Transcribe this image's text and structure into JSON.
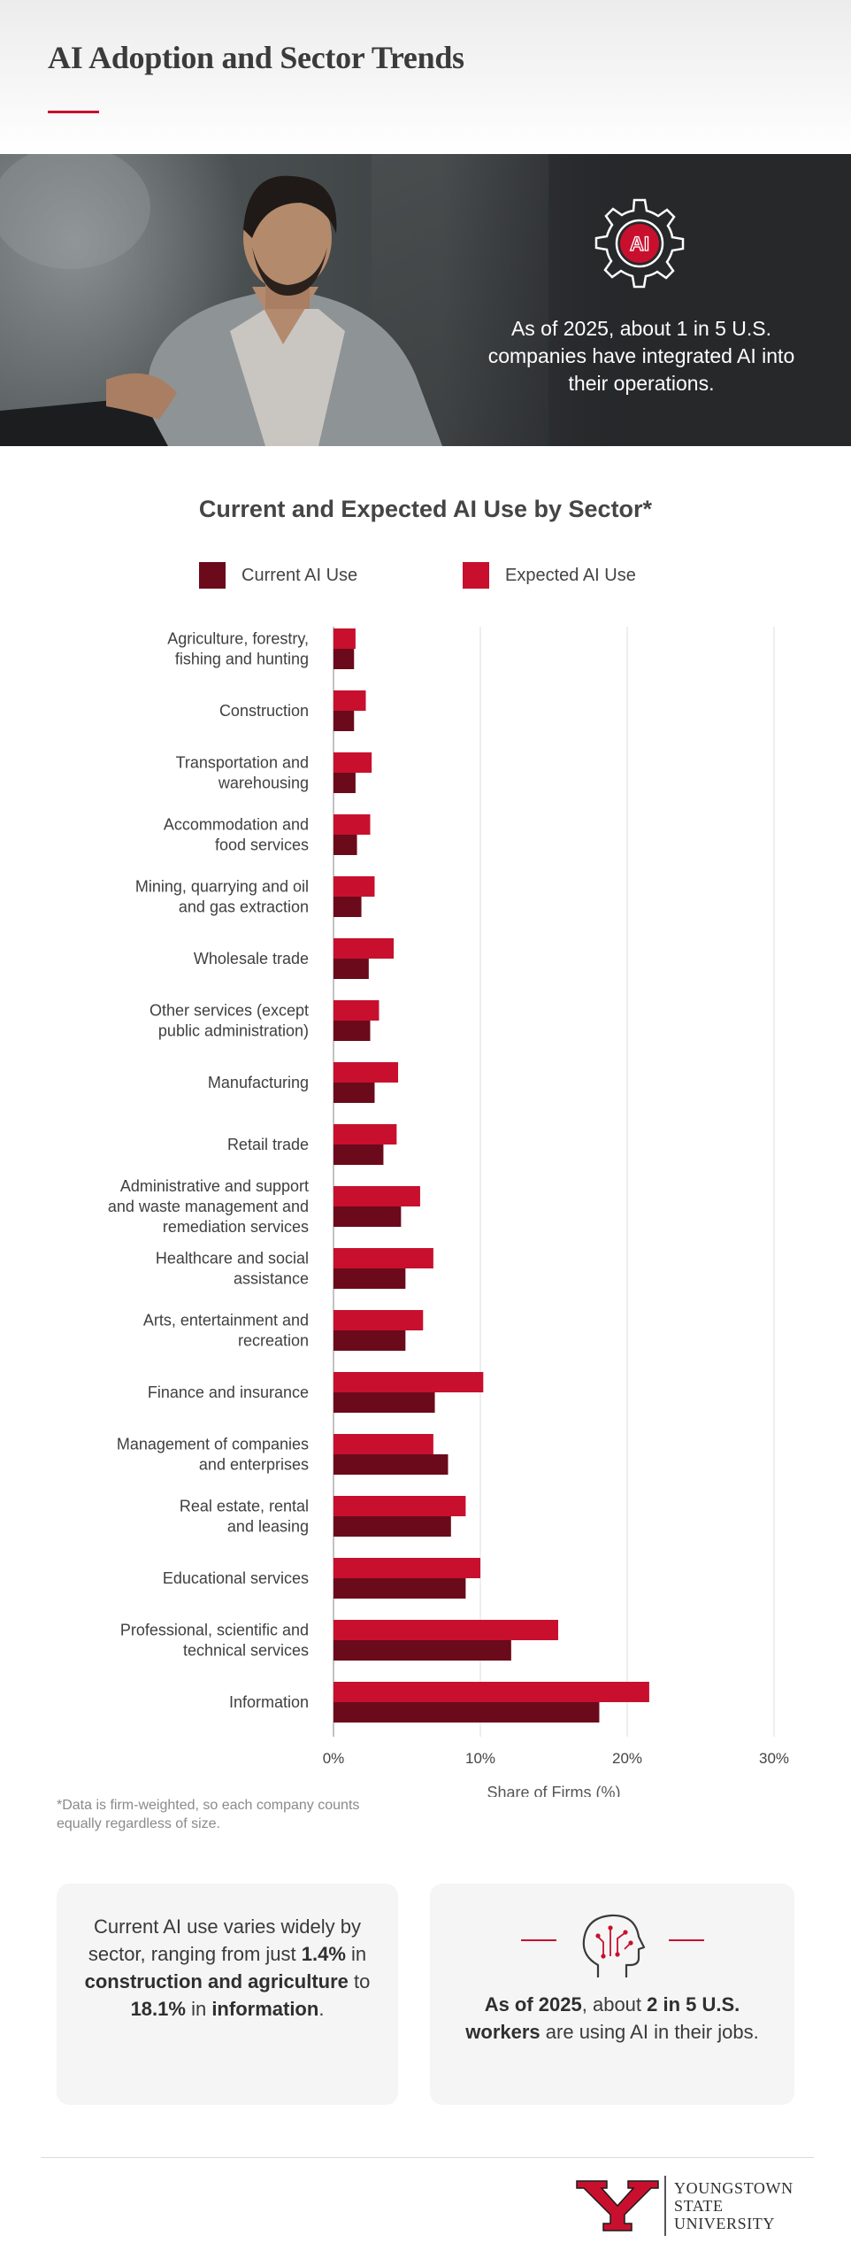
{
  "page": {
    "title": "AI Adoption and Sector Trends",
    "hero_text": "As of 2025, about 1 in 5 U.S. companies have integrated AI into their operations.",
    "hero_badge": "AI",
    "footnote": "*Data is firm-weighted, so each company counts equally regardless of size.",
    "accent_color": "#c8102e",
    "dark_color": "#6b0a1a"
  },
  "cards": {
    "left": {
      "t1": "Current AI use varies widely by sector, ranging from just ",
      "b1": "1.4%",
      "t2": " in ",
      "b2": "construction and agriculture",
      "t3": " to ",
      "b3": "18.1%",
      "t4": " in ",
      "b4": "information",
      "t5": "."
    },
    "right": {
      "b1": "As of 2025",
      "t1": ", about ",
      "b2": "2 in 5 U.S. workers",
      "t2": " are using AI in their jobs.",
      "icon": "brain-circuit-icon"
    }
  },
  "logo": {
    "line1": "YOUNGSTOWN",
    "line2": "STATE",
    "line3": "UNIVERSITY"
  },
  "chart_data": {
    "type": "bar",
    "orientation": "horizontal",
    "title": "Current and Expected AI Use by Sector*",
    "xlabel": "Share of Firms (%)",
    "ylabel": "",
    "xlim": [
      0,
      30
    ],
    "xticks": [
      "0%",
      "10%",
      "20%",
      "30%"
    ],
    "grid": true,
    "legend_position": "top",
    "categories": [
      [
        "Agriculture, forestry,",
        "fishing and hunting"
      ],
      [
        "Construction"
      ],
      [
        "Transportation and",
        "warehousing"
      ],
      [
        "Accommodation and",
        "food services"
      ],
      [
        "Mining, quarrying and oil",
        "and gas extraction"
      ],
      [
        "Wholesale trade"
      ],
      [
        "Other services (except",
        "public administration)"
      ],
      [
        "Manufacturing"
      ],
      [
        "Retail trade"
      ],
      [
        "Administrative and support",
        "and waste management and",
        "remediation services"
      ],
      [
        "Healthcare and social",
        "assistance"
      ],
      [
        "Arts, entertainment and",
        "recreation"
      ],
      [
        "Finance and insurance"
      ],
      [
        "Management of companies",
        "and enterprises"
      ],
      [
        "Real estate, rental",
        "and leasing"
      ],
      [
        "Educational services"
      ],
      [
        "Professional, scientific and",
        "technical services"
      ],
      [
        "Information"
      ]
    ],
    "series": [
      {
        "name": "Current AI Use",
        "color": "#6b0a1a",
        "values": [
          1.4,
          1.4,
          1.5,
          1.6,
          1.9,
          2.4,
          2.5,
          2.8,
          3.4,
          4.6,
          4.9,
          4.9,
          6.9,
          7.8,
          8.0,
          9.0,
          12.1,
          18.1
        ]
      },
      {
        "name": "Expected AI Use",
        "color": "#c8102e",
        "values": [
          1.5,
          2.2,
          2.6,
          2.5,
          2.8,
          4.1,
          3.1,
          4.4,
          4.3,
          5.9,
          6.8,
          6.1,
          10.2,
          6.8,
          9.0,
          10.0,
          15.3,
          21.5
        ]
      }
    ]
  }
}
